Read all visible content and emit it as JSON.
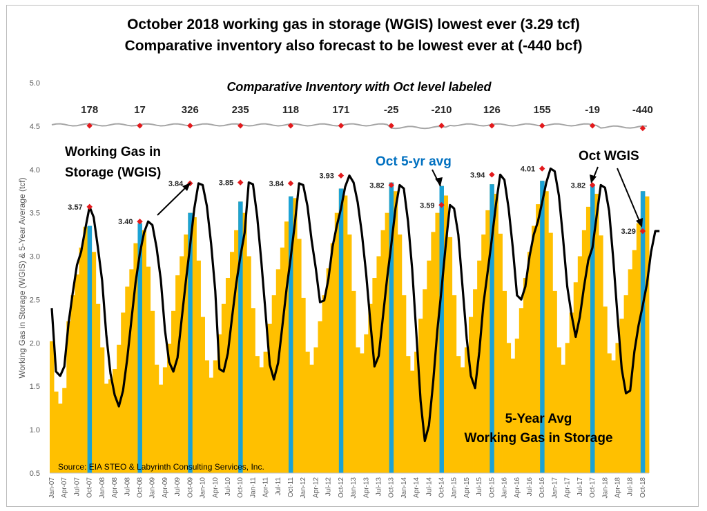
{
  "chart_data": {
    "type": "bar+line",
    "title": "October 2018 working gas in storage (WGIS) lowest ever (3.29 tcf)",
    "subtitle": "Comparative inventory also forecast to be lowest ever at (-440 bcf)",
    "ylabel": "Working Gas in Storage (WGIS)  & 5-Year Average (tcf)",
    "xlabel": "",
    "ylim": [
      0.5,
      5.0
    ],
    "yticks": [
      "0.5",
      "1.0",
      "1.5",
      "2.0",
      "2.5",
      "3.0",
      "3.5",
      "4.0",
      "4.5",
      "5.0"
    ],
    "xtick_labels": [
      "Jan-07",
      "Apr-07",
      "Jul-07",
      "Oct-07",
      "Jan-08",
      "Apr-08",
      "Jul-08",
      "Oct-08",
      "Jan-09",
      "Apr-09",
      "Jul-09",
      "Oct-09",
      "Jan-10",
      "Apr-10",
      "Jul-10",
      "Oct-10",
      "Jan-11",
      "Apr-11",
      "Jul-11",
      "Oct-11",
      "Jan-12",
      "Apr-12",
      "Jul-12",
      "Oct-12",
      "Jan-13",
      "Apr-13",
      "Jul-13",
      "Oct-13",
      "Jan-14",
      "Apr-14",
      "Jul-14",
      "Oct-14",
      "Jan-15",
      "Apr-15",
      "Jul-15",
      "Oct-15",
      "Jan-16",
      "Apr-16",
      "Jul-16",
      "Oct-16",
      "Jan-17",
      "Apr-17",
      "Jul-17",
      "Oct-17",
      "Jan-18",
      "Apr-18",
      "Jul-18",
      "Oct-18"
    ],
    "comparative_inventory": {
      "title": "Comparative Inventory with Oct level labeled",
      "years": [
        "2007",
        "2008",
        "2009",
        "2010",
        "2011",
        "2012",
        "2013",
        "2014",
        "2015",
        "2016",
        "2017",
        "2018"
      ],
      "oct_values_bcf": [
        "178",
        "17",
        "326",
        "235",
        "118",
        "171",
        "-25",
        "-210",
        "126",
        "155",
        "-19",
        "-440"
      ]
    },
    "october_wgis": {
      "years": [
        "2007",
        "2008",
        "2009",
        "2010",
        "2011",
        "2012",
        "2013",
        "2014",
        "2015",
        "2016",
        "2017",
        "2018"
      ],
      "values": [
        3.57,
        3.4,
        3.84,
        3.85,
        3.84,
        3.93,
        3.82,
        3.59,
        3.94,
        4.01,
        3.82,
        3.29
      ],
      "labels": [
        "3.57",
        "3.40",
        "3.84",
        "3.85",
        "3.84",
        "3.93",
        "3.82",
        "3.59",
        "3.94",
        "4.01",
        "3.82",
        "3.29"
      ]
    },
    "series": [
      {
        "name": "Working Gas in Storage (WGIS)",
        "kind": "line",
        "color": "#000000",
        "values": [
          2.4,
          1.67,
          1.62,
          1.73,
          2.23,
          2.58,
          2.9,
          3.05,
          3.32,
          3.57,
          3.45,
          3.1,
          2.72,
          2.1,
          1.65,
          1.4,
          1.27,
          1.45,
          1.82,
          2.27,
          2.7,
          3.03,
          3.27,
          3.4,
          3.36,
          3.1,
          2.73,
          2.15,
          1.78,
          1.67,
          1.83,
          2.28,
          2.72,
          3.12,
          3.55,
          3.84,
          3.82,
          3.58,
          3.15,
          2.6,
          1.7,
          1.67,
          1.88,
          2.29,
          2.68,
          3.0,
          3.27,
          3.85,
          3.83,
          3.46,
          2.94,
          2.35,
          1.75,
          1.58,
          1.77,
          2.19,
          2.62,
          2.98,
          3.38,
          3.84,
          3.82,
          3.58,
          3.18,
          2.86,
          2.47,
          2.49,
          2.74,
          3.11,
          3.35,
          3.55,
          3.8,
          3.93,
          3.85,
          3.62,
          3.26,
          2.8,
          2.25,
          1.73,
          1.85,
          2.3,
          2.74,
          3.13,
          3.55,
          3.82,
          3.78,
          3.4,
          2.85,
          2.1,
          1.33,
          0.87,
          1.05,
          1.55,
          2.15,
          2.62,
          3.13,
          3.59,
          3.55,
          3.25,
          2.65,
          2.05,
          1.62,
          1.48,
          1.9,
          2.45,
          2.82,
          3.2,
          3.6,
          3.94,
          3.88,
          3.55,
          3.1,
          2.55,
          2.5,
          2.65,
          3.0,
          3.25,
          3.4,
          3.62,
          3.85,
          4.01,
          3.98,
          3.7,
          3.2,
          2.65,
          2.33,
          2.07,
          2.3,
          2.65,
          2.95,
          3.1,
          3.46,
          3.82,
          3.79,
          3.52,
          2.95,
          2.3,
          1.7,
          1.42,
          1.45,
          1.9,
          2.2,
          2.43,
          2.68,
          3.05,
          3.29,
          3.29
        ]
      },
      {
        "name": "5-Year Avg Working Gas in Storage",
        "kind": "bar",
        "color": "#FFC000",
        "values": [
          2.02,
          1.44,
          1.3,
          1.48,
          2.25,
          2.55,
          2.79,
          3.1,
          3.34,
          3.35,
          3.05,
          2.45,
          1.95,
          1.53,
          1.58,
          1.7,
          1.98,
          2.35,
          2.65,
          2.85,
          3.15,
          3.38,
          3.3,
          2.88,
          2.37,
          1.75,
          1.52,
          1.72,
          1.99,
          2.37,
          2.78,
          3.0,
          3.25,
          3.5,
          3.45,
          2.95,
          2.3,
          1.8,
          1.6,
          1.8,
          2.1,
          2.45,
          2.75,
          3.05,
          3.3,
          3.63,
          3.5,
          3.0,
          2.4,
          1.85,
          1.72,
          1.9,
          2.22,
          2.55,
          2.85,
          3.1,
          3.4,
          3.69,
          3.67,
          3.2,
          2.52,
          1.9,
          1.75,
          1.95,
          2.25,
          2.55,
          2.86,
          3.15,
          3.5,
          3.78,
          3.7,
          3.25,
          2.6,
          1.95,
          1.88,
          2.1,
          2.45,
          2.75,
          3.0,
          3.3,
          3.5,
          3.85,
          3.75,
          3.25,
          2.55,
          1.85,
          1.68,
          1.9,
          2.28,
          2.62,
          2.95,
          3.28,
          3.5,
          3.81,
          3.7,
          3.22,
          2.55,
          1.85,
          1.72,
          1.95,
          2.3,
          2.62,
          2.95,
          3.25,
          3.53,
          3.83,
          3.72,
          3.26,
          2.6,
          2.0,
          1.82,
          2.05,
          2.4,
          2.75,
          3.05,
          3.35,
          3.6,
          3.87,
          3.75,
          3.27,
          2.6,
          1.95,
          1.75,
          2.0,
          2.35,
          2.7,
          3.0,
          3.3,
          3.57,
          3.83,
          3.72,
          3.24,
          2.42,
          1.88,
          1.8,
          2.0,
          2.28,
          2.55,
          2.85,
          3.07,
          3.38,
          3.75,
          3.69
        ]
      },
      {
        "name": "Oct 5-yr avg",
        "kind": "bar-highlight",
        "color": "#1BA2D6",
        "values": [
          3.35,
          3.38,
          3.5,
          3.63,
          3.69,
          3.78,
          3.85,
          3.81,
          3.83,
          3.87,
          3.83,
          3.75
        ]
      }
    ],
    "annotations": [
      "Working Gas in",
      "Storage (WGIS)",
      "Oct 5-yr avg",
      "Oct WGIS",
      "5-Year Avg",
      "Working Gas in Storage"
    ],
    "source": "Source: EIA STEO & Labyrinth Consulting Services, Inc.",
    "colors": {
      "bars": "#FFC000",
      "oct_bars": "#1BA2D6",
      "line": "#000000",
      "comparative_line": "#A6A6A6",
      "markers": "#E3191C",
      "oct_label": "#0070C0"
    },
    "legend": "none",
    "grid": false
  }
}
